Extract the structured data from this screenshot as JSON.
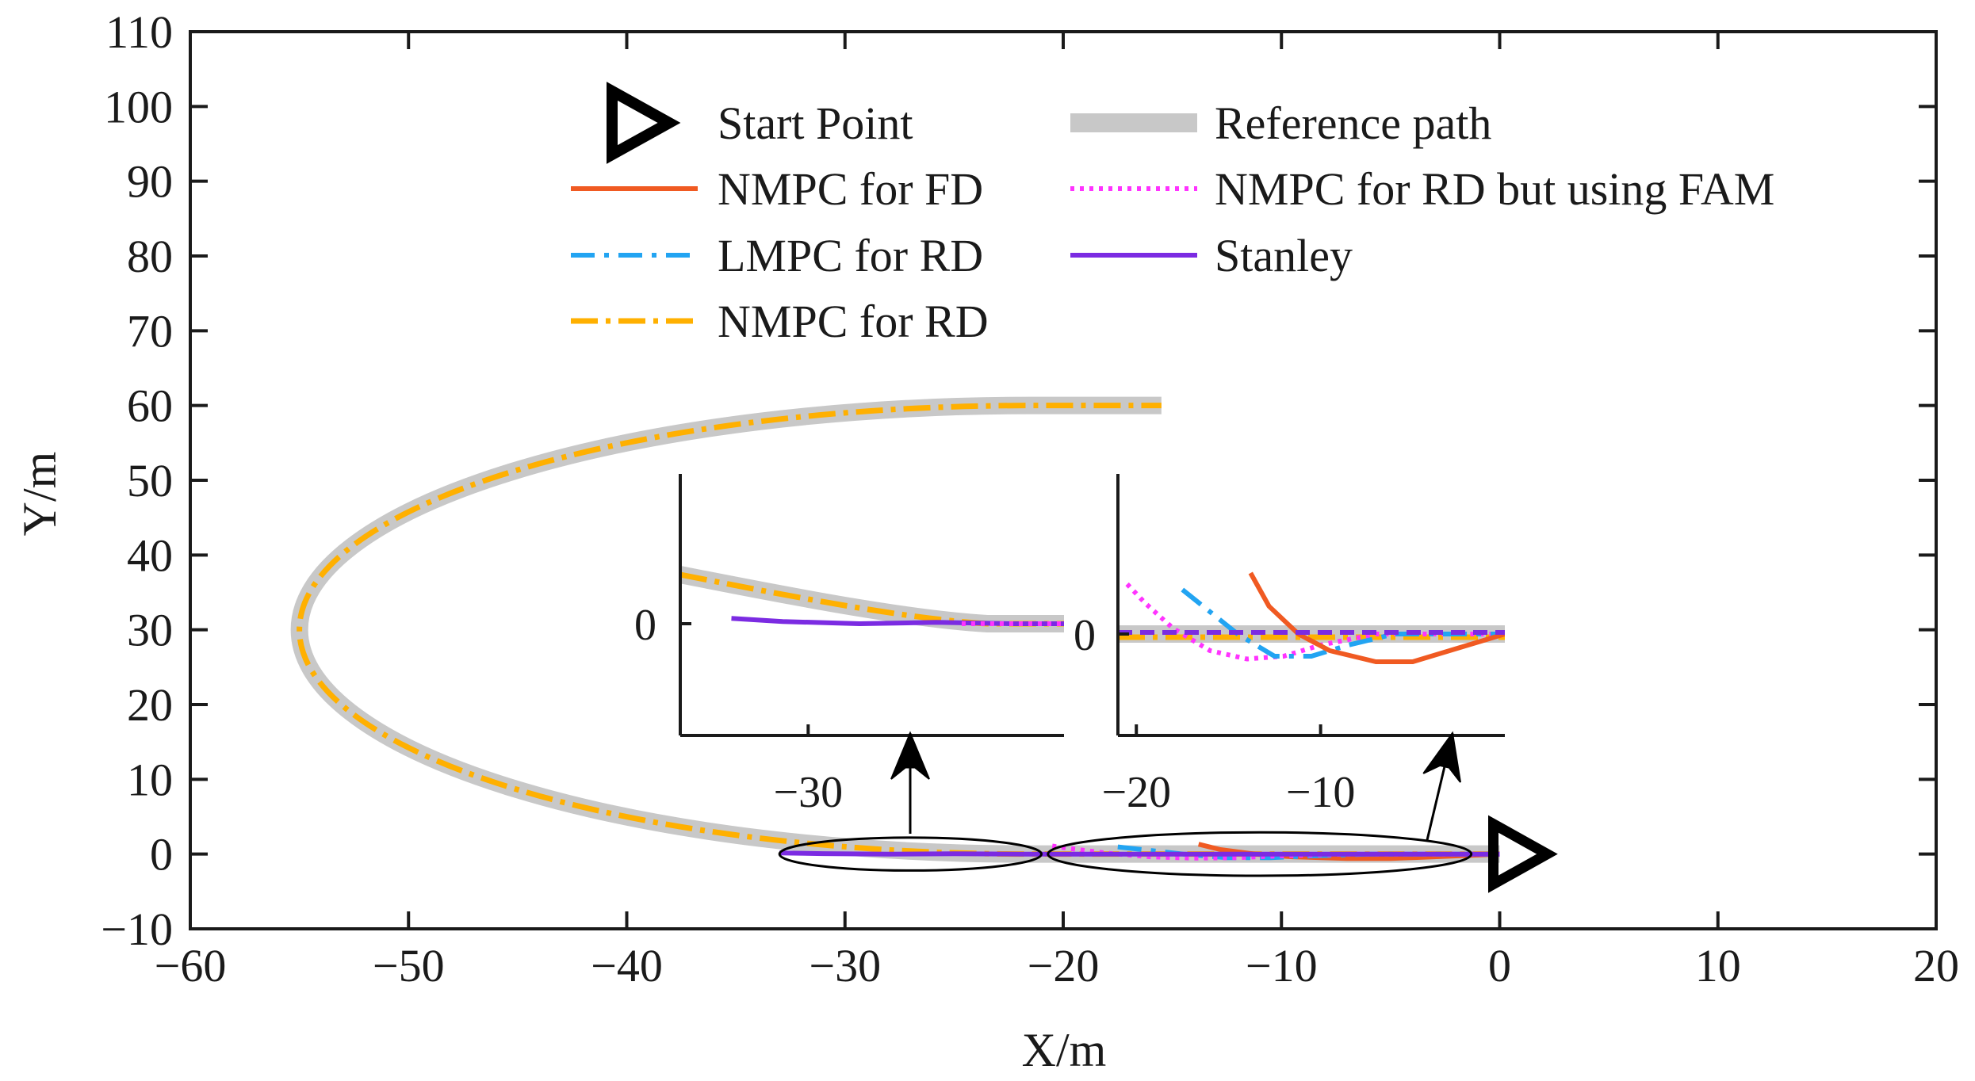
{
  "chart_data": {
    "type": "line",
    "title": "",
    "xlabel": "X/m",
    "ylabel": "Y/m",
    "xlim": [
      -60,
      20
    ],
    "ylim": [
      -10,
      110
    ],
    "xticks": [
      -60,
      -50,
      -40,
      -30,
      -20,
      -10,
      0,
      10,
      20
    ],
    "yticks": [
      -10,
      0,
      10,
      20,
      30,
      40,
      50,
      60,
      70,
      80,
      90,
      100,
      110
    ],
    "xtick_labels": [
      "−60",
      "−50",
      "−40",
      "−30",
      "−20",
      "−10",
      "0",
      "10",
      "20"
    ],
    "ytick_labels": [
      "−10",
      "0",
      "10",
      "20",
      "30",
      "40",
      "50",
      "60",
      "70",
      "80",
      "90",
      "100",
      "110"
    ],
    "legend": {
      "placement": "top-center",
      "entries": [
        {
          "label": "Start Point",
          "style": "triangle-marker",
          "color": "#000000"
        },
        {
          "label": "Reference path",
          "style": "thick-solid",
          "color": "#c8c8c8"
        },
        {
          "label": "NMPC for FD",
          "style": "solid",
          "color": "#f05a22"
        },
        {
          "label": "NMPC for RD but using FAM",
          "style": "dotted",
          "color": "#ff33ff"
        },
        {
          "label": "LMPC for RD",
          "style": "dash-dot",
          "color": "#22a4f2"
        },
        {
          "label": "Stanley",
          "style": "solid",
          "color": "#7b2be2"
        },
        {
          "label": "NMPC for RD",
          "style": "dash-dot",
          "color": "#ffb000"
        }
      ]
    },
    "start_point": {
      "x": 0,
      "y": 0
    },
    "reference_path": {
      "description": "straight from (0,0) to (-21.5,0), half-ellipse centred (-21.5,30) with radii 33.5 x 30, straight from (-21.5,60) to (-15.5,60)",
      "line1": {
        "from": [
          0,
          0
        ],
        "to": [
          -21.5,
          0
        ]
      },
      "arc": {
        "center": [
          -21.5,
          30
        ],
        "rx": 33.5,
        "ry": 30
      },
      "line2": {
        "from": [
          -21.5,
          60
        ],
        "to": [
          -15.5,
          60
        ]
      }
    },
    "series": [
      {
        "name": "NMPC for RD",
        "x": [
          -15.5,
          -21.5,
          -30,
          -40,
          -50,
          -55,
          -50,
          -40,
          -30,
          -21.5,
          -10,
          0
        ],
        "y": [
          60,
          60,
          59,
          54,
          43,
          30,
          17,
          6,
          1,
          0,
          0,
          0
        ]
      },
      {
        "name": "NMPC for FD",
        "x": [
          -13.8,
          -12.8,
          -11.2,
          -9.5,
          -7,
          -5,
          -3,
          0
        ],
        "y": [
          1.1,
          0.5,
          0,
          -0.3,
          -0.5,
          -0.5,
          -0.3,
          0
        ]
      },
      {
        "name": "LMPC for RD",
        "x": [
          -17.5,
          -16,
          -14.5,
          -12.5,
          -10.5,
          -8.5,
          -6,
          -3,
          0
        ],
        "y": [
          0.8,
          0.4,
          0,
          -0.4,
          -0.4,
          -0.2,
          0,
          0,
          0
        ]
      },
      {
        "name": "NMPC for RD but using FAM",
        "x": [
          -20.5,
          -19.5,
          -18,
          -16,
          -14,
          -12,
          -10,
          -7,
          0
        ],
        "y": [
          0.9,
          0.55,
          0.1,
          -0.3,
          -0.45,
          -0.4,
          -0.2,
          0,
          0
        ]
      },
      {
        "name": "Stanley",
        "x": [
          -33,
          -31,
          -28,
          -25,
          -22,
          -20,
          -10,
          0
        ],
        "y": [
          0.12,
          0.05,
          0,
          0.03,
          0,
          0,
          0,
          0
        ]
      }
    ],
    "insets": [
      {
        "region": "left",
        "xlim": [
          -35,
          -20
        ],
        "xticks": [
          -30
        ],
        "xtick_labels": [
          "−30"
        ],
        "ytick_labels": [
          "0"
        ],
        "focus_ellipse": {
          "cx": -27,
          "cy": 0,
          "rx": 6,
          "ry": 2.2
        }
      },
      {
        "region": "right",
        "xlim": [
          -21,
          0
        ],
        "xticks": [
          -20,
          -10
        ],
        "xtick_labels": [
          "−20",
          "−10"
        ],
        "ytick_labels": [
          "0"
        ],
        "focus_ellipse": {
          "cx": -11,
          "cy": 0,
          "rx": 9.7,
          "ry": 2.9
        }
      }
    ]
  },
  "colors": {
    "reference": "#c8c8c8",
    "nmpc_fd": "#f05a22",
    "nmpc_rd_fam": "#ff33ff",
    "lmpc_rd": "#22a4f2",
    "stanley": "#7b2be2",
    "nmpc_rd": "#ffb000",
    "axis": "#1a1a1a"
  }
}
